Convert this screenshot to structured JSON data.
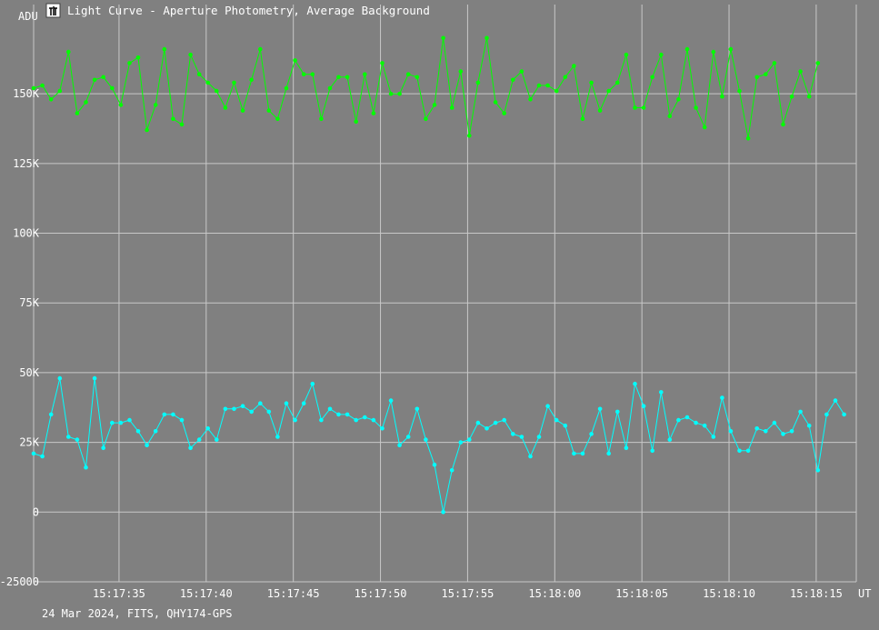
{
  "window": {
    "title": "Light Curve - Aperture Photometry, Average Background",
    "footer": "24 Mar 2024, FITS, QHY174-GPS",
    "icon": "light-curve-app-icon"
  },
  "chart_data": {
    "type": "line",
    "title": "Light Curve - Aperture Photometry, Average Background",
    "ylabel": "ADU",
    "xlabel": "UT",
    "ylim": [
      -25000,
      182000
    ],
    "xlim": [
      "15:17:30.1",
      "15:18:17.3"
    ],
    "grid": true,
    "y_ticks": [
      -25000,
      0,
      25000,
      50000,
      75000,
      100000,
      125000,
      150000
    ],
    "y_tick_labels": [
      "-25000",
      "0",
      "25K",
      "50K",
      "75K",
      "100K",
      "125K",
      "150K"
    ],
    "x_ticks": [
      "15:17:35",
      "15:17:40",
      "15:17:45",
      "15:17:50",
      "15:17:55",
      "15:18:00",
      "15:18:05",
      "15:18:10",
      "15:18:15"
    ],
    "x_start": "15:17:30.1",
    "x_step_seconds": 0.5,
    "series": [
      {
        "color": "#00ff00",
        "values": [
          152000,
          153000,
          148000,
          151000,
          165000,
          143000,
          147000,
          155000,
          156000,
          152000,
          146000,
          161000,
          163000,
          137000,
          146000,
          166000,
          141000,
          139000,
          164000,
          157000,
          154000,
          151000,
          145000,
          154000,
          144000,
          155000,
          166000,
          144000,
          141000,
          152000,
          162000,
          157000,
          157000,
          141000,
          152000,
          156000,
          156000,
          140000,
          157000,
          143000,
          161000,
          150000,
          150000,
          157000,
          156000,
          141000,
          146000,
          170000,
          145000,
          158000,
          135000,
          154000,
          170000,
          147000,
          143000,
          155000,
          158000,
          148000,
          153000,
          153000,
          151000,
          156000,
          160000,
          141000,
          154000,
          144000,
          151000,
          154000,
          164000,
          145000,
          145000,
          156000,
          164000,
          142000,
          148000,
          166000,
          145000,
          138000,
          165000,
          149000,
          166000,
          151000,
          134000,
          156000,
          157000,
          161000,
          139000,
          149000,
          158000,
          149000,
          161000
        ]
      },
      {
        "color": "#00ffff",
        "values": [
          21000,
          20000,
          35000,
          48000,
          27000,
          26000,
          16000,
          48000,
          23000,
          32000,
          32000,
          33000,
          29000,
          24000,
          29000,
          35000,
          35000,
          33000,
          23000,
          26000,
          30000,
          26000,
          37000,
          37000,
          38000,
          36000,
          39000,
          36000,
          27000,
          39000,
          33000,
          39000,
          46000,
          33000,
          37000,
          35000,
          35000,
          33000,
          34000,
          33000,
          30000,
          40000,
          24000,
          27000,
          37000,
          26000,
          17000,
          0,
          15000,
          25000,
          26000,
          32000,
          30000,
          32000,
          33000,
          28000,
          27000,
          20000,
          27000,
          38000,
          33000,
          31000,
          21000,
          21000,
          28000,
          37000,
          21000,
          36000,
          23000,
          46000,
          38000,
          22000,
          43000,
          26000,
          33000,
          34000,
          32000,
          31000,
          27000,
          41000,
          29000,
          22000,
          22000,
          30000,
          29000,
          32000,
          28000,
          29000,
          36000,
          31000,
          15000,
          35000,
          40000,
          35000
        ]
      }
    ]
  }
}
